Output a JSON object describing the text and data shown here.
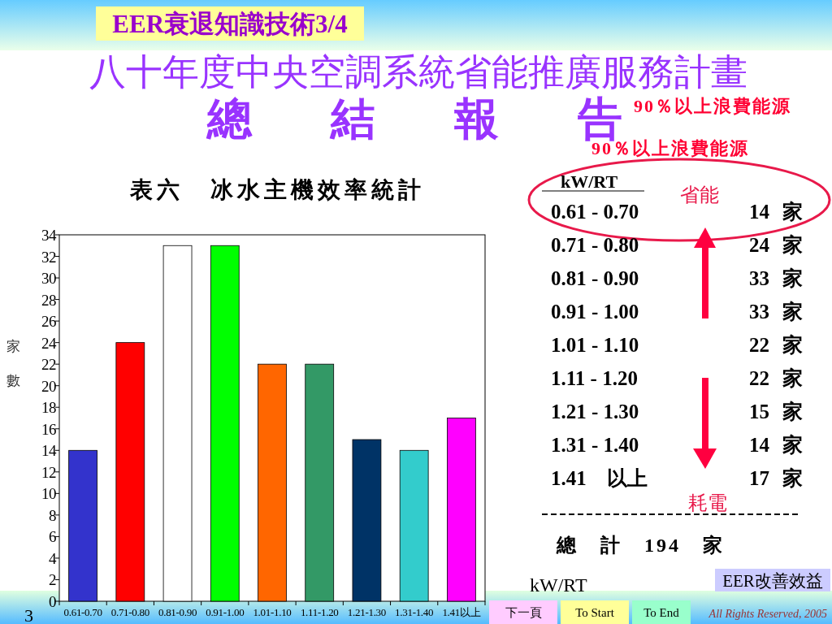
{
  "chart_data": {
    "type": "bar",
    "title": "表六　冰水主機效率統計",
    "xlabel": "kW/RT",
    "ylabel": "家數",
    "categories": [
      "0.61-0.70",
      "0.71-0.80",
      "0.81-0.90",
      "0.91-1.00",
      "1.01-1.10",
      "1.11-1.20",
      "1.21-1.30",
      "1.31-1.40",
      "1.41以上"
    ],
    "values": [
      14,
      24,
      33,
      33,
      22,
      22,
      15,
      14,
      17
    ],
    "colors": [
      "#3333cc",
      "#ff0000",
      "#ffffff",
      "#00ff00",
      "#ff6600",
      "#339966",
      "#003366",
      "#33cccc",
      "#ff00ff"
    ],
    "ylim": [
      0,
      34
    ],
    "yticks": [
      0,
      2,
      4,
      6,
      8,
      10,
      12,
      14,
      16,
      18,
      20,
      22,
      24,
      26,
      28,
      30,
      32,
      34
    ],
    "annotations": [
      "EER衰退知識技術3/4",
      "八十年度中央空調系統省能推廣服務計畫",
      "總　結　報　告",
      "90％以上浪費能源",
      "90％以上浪費能源",
      "kW/RT",
      "0.61 - 0.70",
      "0.71 - 0.80",
      "0.81 - 0.90",
      "0.91 - 1.00",
      "1.01 - 1.10",
      "1.11 - 1.20",
      "1.21 - 1.30",
      "1.31 - 1.40",
      "1.41　以上",
      "14 家",
      "24 家",
      "33 家",
      "33 家",
      "22 家",
      "22 家",
      "15 家",
      "14 家",
      "17 家",
      "省能",
      "耗電",
      "總　計　194　家",
      "EER改善效益",
      "3",
      "下一頁",
      "To Start",
      "To End",
      "All Rights Reserved, 2005"
    ]
  }
}
